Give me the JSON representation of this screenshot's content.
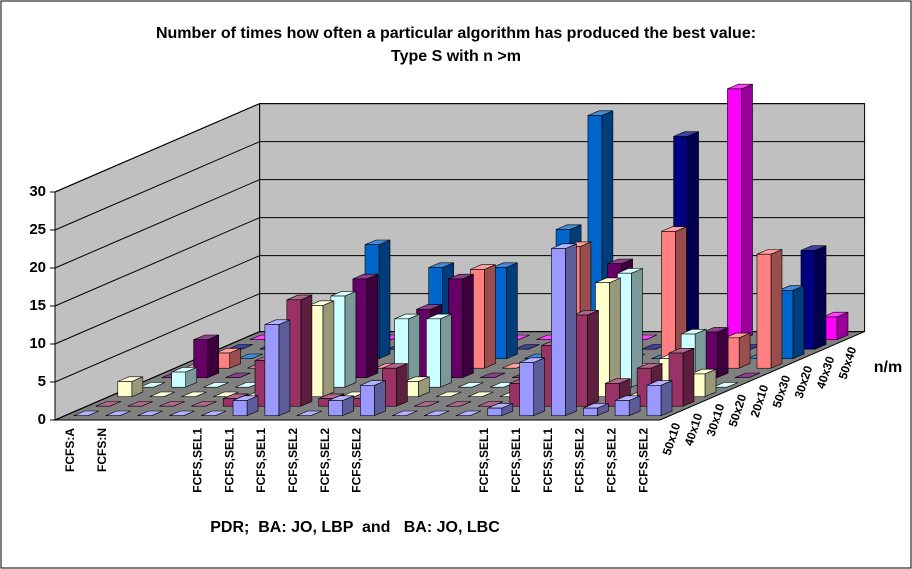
{
  "chart_data": {
    "type": "bar3d",
    "title": "Number of times how often a particular algorithm has produced the best value: Type S with n >m",
    "x_label": "PDR;  BA: JO, LBP  and   BA: JO, LBC",
    "depth_label": "n/m",
    "categories": [
      "FCFS:A",
      "FCFS:N",
      null,
      null,
      "FCFS,SEL1",
      "FCFS,SEL1",
      "FCFS,SEL1",
      "FCFS,SEL2",
      "FCFS,SEL2",
      "FCFS,SEL2",
      null,
      null,
      null,
      "FCFS,SEL1",
      "FCFS,SEL1",
      "FCFS,SEL1",
      "FCFS,SEL2",
      "FCFS,SEL2",
      "FCFS,SEL2"
    ],
    "series": [
      {
        "name": "50x10",
        "color": "#9999FF",
        "values": [
          0,
          0,
          0,
          0,
          0,
          2,
          12,
          0,
          2,
          4,
          0,
          0,
          0,
          1,
          7,
          22,
          1,
          2,
          4
        ]
      },
      {
        "name": "40x10",
        "color": "#993366",
        "values": [
          0,
          0,
          0,
          0,
          1,
          6,
          14,
          1,
          1,
          5,
          0,
          0,
          0,
          3,
          8,
          12,
          3,
          5,
          7
        ]
      },
      {
        "name": "30x10",
        "color": "#FFFFCC",
        "values": [
          2,
          0,
          0,
          0,
          0,
          0,
          12,
          0,
          1,
          2,
          0,
          0,
          0,
          0,
          0,
          15,
          0,
          5,
          3
        ]
      },
      {
        "name": "50x20",
        "color": "#CCFFFF",
        "values": [
          0,
          2,
          0,
          0,
          0,
          0,
          12,
          0,
          9,
          9,
          0,
          0,
          0,
          0,
          0,
          15,
          0,
          7,
          0
        ]
      },
      {
        "name": "20x10",
        "color": "#660066",
        "values": [
          0,
          5,
          0,
          0,
          0,
          0,
          13,
          0,
          9,
          13,
          0,
          0,
          0,
          0,
          15,
          0,
          0,
          6,
          0
        ]
      },
      {
        "name": "50x30",
        "color": "#FF8080",
        "values": [
          0,
          2,
          0,
          0,
          0,
          0,
          0,
          2,
          0,
          13,
          0,
          0,
          16,
          0,
          0,
          18,
          0,
          4,
          15
        ]
      },
      {
        "name": "30x20",
        "color": "#0066CC",
        "values": [
          0,
          0,
          0,
          0,
          0,
          15,
          0,
          12,
          0,
          12,
          0,
          17,
          32,
          0,
          0,
          0,
          0,
          0,
          9
        ]
      },
      {
        "name": "40x30",
        "color": "#000080",
        "values": [
          0,
          0,
          0,
          0,
          0,
          0,
          0,
          0,
          0,
          0,
          0,
          0,
          0,
          0,
          28,
          0,
          0,
          0,
          13
        ]
      },
      {
        "name": "50x40",
        "color": "#FF00FF",
        "values": [
          0,
          0,
          0,
          0,
          0,
          0,
          0,
          0,
          0,
          0,
          0,
          0,
          0,
          0,
          0,
          33,
          0,
          0,
          3
        ]
      }
    ],
    "ylim": [
      0,
      30
    ],
    "yticks": [
      0,
      5,
      10,
      15,
      20,
      25,
      30
    ],
    "grid": true
  }
}
